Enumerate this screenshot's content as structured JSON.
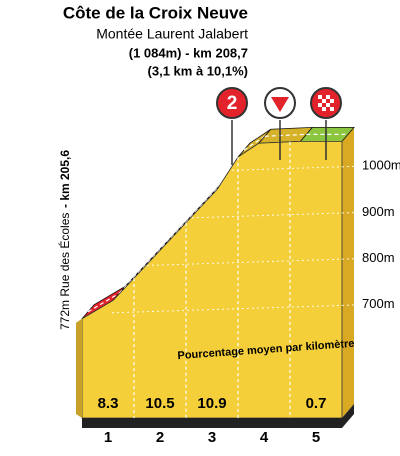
{
  "chart_data": {
    "type": "climb-profile",
    "title": "Côte de la Croix Neuve",
    "subtitle": "Montée Laurent Jalabert",
    "summit": "(1 084m) - km 208,7",
    "climb": "(3,1 km à 10,1%)",
    "start_label": "772m Rue des Écoles",
    "start_km": "- km 205,6",
    "annotation": "Pourcentage moyen par kilomètre",
    "category_badge": "2",
    "categories": [
      "1",
      "2",
      "3",
      "4",
      "5"
    ],
    "gradients": [
      8.3,
      10.5,
      10.9,
      null,
      0.7
    ],
    "segment_colors": [
      "#e3232c",
      "#222222",
      "#222222",
      "#d6b22a",
      "#8cc63f"
    ],
    "profile": {
      "x": [
        0,
        0.6,
        1.6,
        2.6,
        3.0,
        3.4,
        4.2,
        5
      ],
      "values": [
        700,
        740,
        860,
        980,
        1050,
        1080,
        1084,
        1084
      ]
    },
    "xlim": [
      0,
      5
    ],
    "ylim": [
      600,
      1100
    ],
    "yticks": [
      {
        "value": 700,
        "label": "700m"
      },
      {
        "value": 800,
        "label": "800m"
      },
      {
        "value": 900,
        "label": "900m"
      },
      {
        "value": 1000,
        "label": "1000m"
      }
    ],
    "color": "#f4cf3a"
  }
}
